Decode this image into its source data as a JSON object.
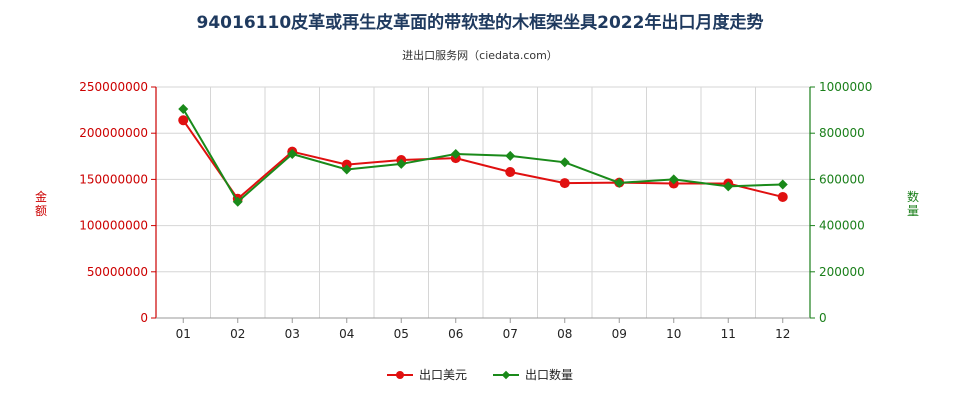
{
  "chart_data": {
    "type": "line",
    "title": "94016110皮革或再生皮革面的带软垫的木框架坐具2022年出口月度走势",
    "subtitle": "进出口服务网（ciedata.com）",
    "categories": [
      "01",
      "02",
      "03",
      "04",
      "05",
      "06",
      "07",
      "08",
      "09",
      "10",
      "11",
      "12"
    ],
    "y_left": {
      "label": "金额",
      "range": [
        0,
        250000000
      ],
      "ticks": [
        "0",
        "50000000",
        "100000000",
        "150000000",
        "200000000",
        "250000000"
      ]
    },
    "y_right": {
      "label": "数量",
      "range": [
        0,
        1000000
      ],
      "ticks": [
        "0",
        "200000",
        "400000",
        "600000",
        "800000",
        "1000000"
      ]
    },
    "grid": true,
    "legend_position": "bottom",
    "series": [
      {
        "name": "出口美元",
        "axis": "left",
        "color": "#e01010",
        "marker": "circle",
        "values": [
          214000000,
          129000000,
          180000000,
          166000000,
          171000000,
          173000000,
          158000000,
          146000000,
          146500000,
          145500000,
          145500000,
          131000000
        ]
      },
      {
        "name": "出口数量",
        "axis": "right",
        "color": "#1a8a1a",
        "marker": "diamond",
        "values": [
          905000,
          503000,
          710000,
          643000,
          667000,
          710000,
          702000,
          674000,
          585000,
          600000,
          570000,
          578000
        ]
      }
    ]
  }
}
